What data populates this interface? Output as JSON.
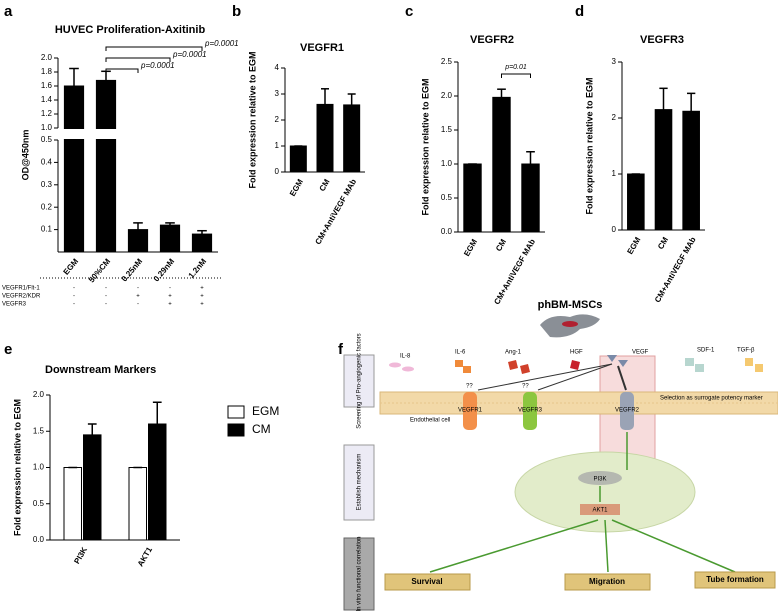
{
  "chart_data": [
    {
      "type": "bar",
      "panel": "a",
      "title": "HUVEC Proliferation-Axitinib",
      "y_label": "OD@450nm",
      "categories": [
        "EGM",
        "50%CM",
        "0.25nM",
        "0.29nM",
        "1.2nM"
      ],
      "values": [
        1.6,
        1.68,
        0.1,
        0.12,
        0.08
      ],
      "errors": [
        0.25,
        0.13,
        0.03,
        0.01,
        0.015
      ],
      "color": "#000000",
      "ylim": [
        0,
        2
      ],
      "axis_break": [
        0.5,
        1
      ],
      "yticks": [
        0.1,
        0.2,
        0.3,
        0.4,
        0.5,
        {
          "value": 1,
          "label": "1.0"
        },
        1.2,
        1.4,
        1.6,
        1.8,
        {
          "value": 2,
          "label": "2.0"
        }
      ],
      "annotations": [
        "p=0.0001",
        "p=0.0001",
        "p=0.0001"
      ],
      "matrix_rows": [
        {
          "label": "VEGFR1/Flt-1",
          "signs": [
            "-",
            "-",
            "-",
            "-",
            "+"
          ]
        },
        {
          "label": "VEGFR2/KDR",
          "signs": [
            "-",
            "-",
            "+",
            "+",
            "+"
          ]
        },
        {
          "label": "VEGFR3",
          "signs": [
            "-",
            "-",
            "-",
            "+",
            "+"
          ]
        }
      ]
    },
    {
      "type": "bar",
      "panel": "b",
      "title": "VEGFR1",
      "y_label": "Fold expression relative to EGM",
      "categories": [
        "EGM",
        "CM",
        "CM+AntiVEGF MAb"
      ],
      "values": [
        1,
        2.6,
        2.58
      ],
      "errors": [
        0,
        0.6,
        0.42
      ],
      "color": "#000000",
      "ylim": [
        0,
        4
      ],
      "yticks": [
        0,
        1,
        2,
        3,
        4
      ]
    },
    {
      "type": "bar",
      "panel": "c",
      "title": "VEGFR2",
      "y_label": "Fold expression relative to EGM",
      "categories": [
        "EGM",
        "CM",
        "CM+AntiVEGF MAb"
      ],
      "values": [
        1,
        1.98,
        1
      ],
      "errors": [
        0,
        0.12,
        0.18
      ],
      "color": "#000000",
      "ylim": [
        0,
        2.5
      ],
      "yticks": [
        {
          "value": 0,
          "label": "0.0"
        },
        0.5,
        {
          "value": 1,
          "label": "1.0"
        },
        1.5,
        {
          "value": 2,
          "label": "2.0"
        },
        2.5
      ],
      "annotations": [
        "p=0.01"
      ]
    },
    {
      "type": "bar",
      "panel": "d",
      "title": "VEGFR3",
      "y_label": "Fold expression relative to EGM",
      "categories": [
        "EGM",
        "CM",
        "CM+AntiVEGF MAb"
      ],
      "values": [
        1,
        2.15,
        2.12
      ],
      "errors": [
        0,
        0.38,
        0.32
      ],
      "color": "#000000",
      "ylim": [
        0,
        3
      ],
      "yticks": [
        0,
        1,
        2,
        3
      ]
    },
    {
      "type": "bar",
      "panel": "e",
      "title": "Downstream Markers",
      "y_label": "Fold expression relative to EGM",
      "categories": [
        "PI3K",
        "AKT1"
      ],
      "series": [
        {
          "name": "EGM",
          "color": "#ffffff",
          "values": [
            1,
            1
          ],
          "errors": [
            0,
            0
          ]
        },
        {
          "name": "CM",
          "color": "#000000",
          "values": [
            1.45,
            1.6
          ],
          "errors": [
            0.15,
            0.3
          ]
        }
      ],
      "ylim": [
        0,
        2
      ],
      "yticks": [
        {
          "value": 0,
          "label": "0.0"
        },
        0.5,
        {
          "value": 1,
          "label": "1.0"
        },
        1.5,
        {
          "value": 2,
          "label": "2.0"
        }
      ],
      "legend": "upper right"
    }
  ],
  "diagram": {
    "panel": "f",
    "source": "phBM-MSCs",
    "stages": [
      "Screening of Pro-angiogenic factors",
      "Establish mechanism",
      "In vitro functional correlation"
    ],
    "factors": [
      "IL-8",
      "IL-6",
      "Ang-1",
      "HGF",
      "VEGF",
      "SDF-1",
      "TGF-β"
    ],
    "receptors": [
      "VEGFR1",
      "VEGFR3",
      "VEGFR2"
    ],
    "unknown": [
      "??",
      "??"
    ],
    "selection": "Selection as surrogate potency marker",
    "cell": "Endothelial cell",
    "pathway": [
      "PI3K",
      "AKT1"
    ],
    "outcomes": [
      "Survival",
      "Migration",
      "Tube formation"
    ]
  }
}
